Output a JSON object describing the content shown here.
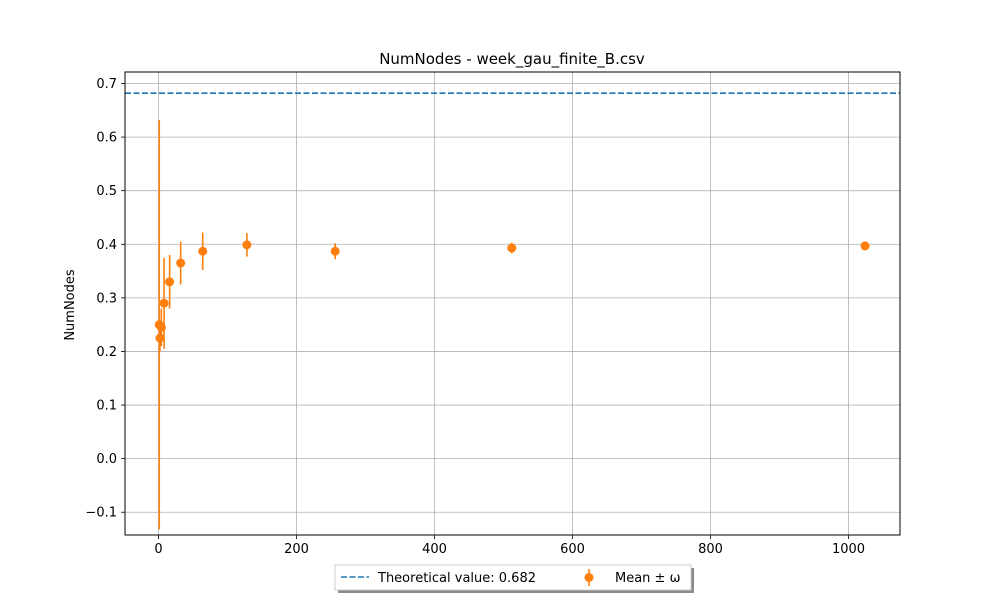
{
  "chart_data": {
    "type": "scatter",
    "title": "NumNodes - week_gau_finite_B.csv",
    "xlabel": "",
    "ylabel": "NumNodes",
    "xlim": [
      -48.65,
      1074.65
    ],
    "ylim": [
      -0.1425,
      0.7215
    ],
    "xticks": [
      0,
      200,
      400,
      600,
      800,
      1000
    ],
    "xtick_labels": [
      "0",
      "200",
      "400",
      "600",
      "800",
      "1000"
    ],
    "yticks": [
      -0.1,
      0.0,
      0.1,
      0.2,
      0.3,
      0.4,
      0.5,
      0.6,
      0.7
    ],
    "ytick_labels": [
      "−0.1",
      "0.0",
      "0.1",
      "0.2",
      "0.3",
      "0.4",
      "0.5",
      "0.6",
      "0.7"
    ],
    "grid": true,
    "legend_placement": "bottom-center, below plot",
    "reference_line": {
      "name": "Theoretical value: 0.682",
      "y": 0.682,
      "color": "#1f77b4",
      "style": "dashed"
    },
    "series": [
      {
        "name": "Mean ± ω",
        "color": "#ff7f0e",
        "x": [
          1,
          2,
          4,
          8,
          16,
          32,
          64,
          128,
          256,
          512,
          1024
        ],
        "y": [
          0.25,
          0.225,
          0.245,
          0.29,
          0.33,
          0.365,
          0.387,
          0.399,
          0.387,
          0.393,
          0.397
        ],
        "err": [
          0.382,
          0.025,
          0.035,
          0.085,
          0.05,
          0.04,
          0.035,
          0.022,
          0.015,
          0.01,
          0.007
        ]
      }
    ]
  }
}
